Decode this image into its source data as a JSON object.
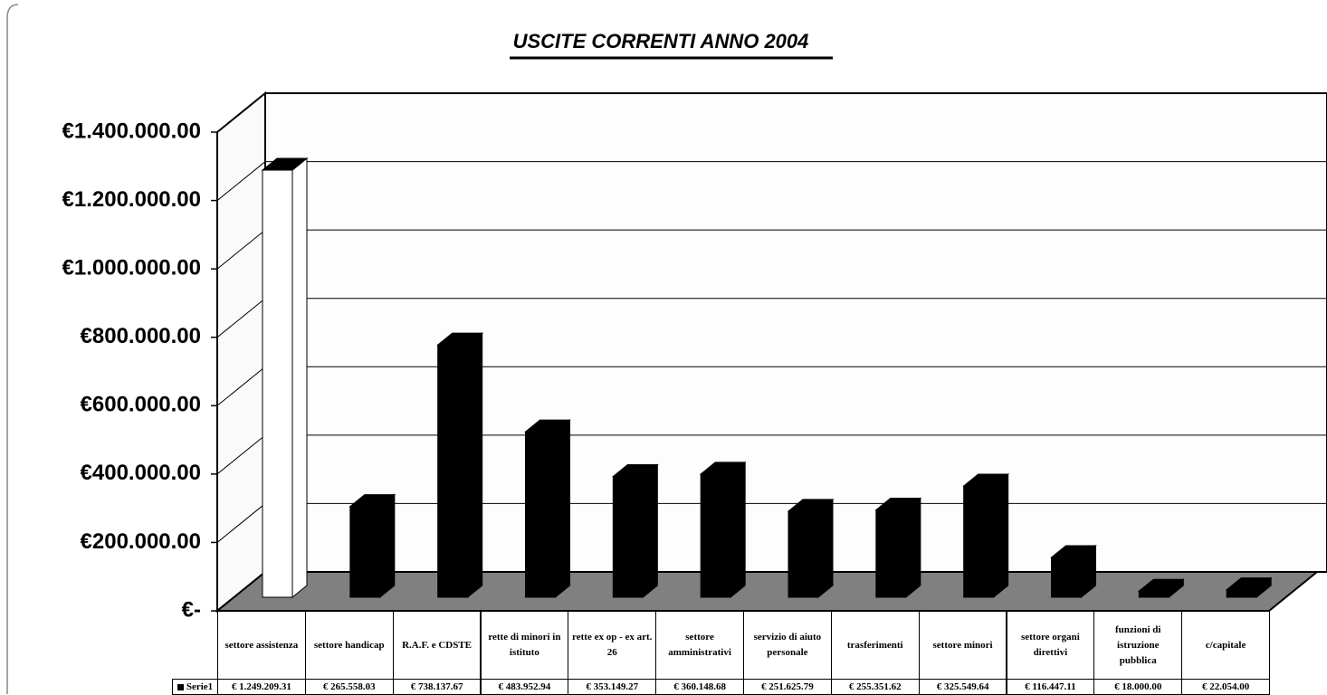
{
  "chart_data": {
    "type": "bar3d",
    "title": "USCITE CORRENTI ANNO 2004",
    "categories": [
      "settore assistenza",
      "settore handicap",
      "R.A.F. e CDSTE",
      "rette di minori in istituto",
      "rette ex op - ex art. 26",
      "settore amministrativi",
      "servizio di aiuto personale",
      "trasferimenti",
      "settore minori",
      "settore organi direttivi",
      "funzioni di istruzione pubblica",
      "c/capitale"
    ],
    "series": [
      {
        "name": "Serie1",
        "color": "#000000",
        "values": [
          1249209.31,
          265558.03,
          738137.67,
          483952.94,
          353149.27,
          360148.68,
          251625.79,
          255351.62,
          325549.64,
          116447.11,
          18000.0,
          22054.0
        ],
        "value_labels": [
          "€ 1.249.209.31",
          "€ 265.558.03",
          "€ 738.137.67",
          "€ 483.952.94",
          "€ 353.149.27",
          "€ 360.148.68",
          "€ 251.625.79",
          "€ 255.351.62",
          "€ 325.549.64",
          "€ 116.447.11",
          "€ 18.000.00",
          "€ 22.054.00"
        ]
      }
    ],
    "bar_colors": [
      "#ffffff",
      "#000000",
      "#000000",
      "#000000",
      "#000000",
      "#000000",
      "#000000",
      "#000000",
      "#000000",
      "#000000",
      "#000000",
      "#000000"
    ],
    "ylim": [
      0,
      1400000
    ],
    "yticks": [
      {
        "value": 0,
        "label": "€-"
      },
      {
        "value": 200000,
        "label": "€200.000.00"
      },
      {
        "value": 400000,
        "label": "€400.000.00"
      },
      {
        "value": 600000,
        "label": "€600.000.00"
      },
      {
        "value": 800000,
        "label": "€800.000.00"
      },
      {
        "value": 1000000,
        "label": "€1.000.000.00"
      },
      {
        "value": 1200000,
        "label": "€1.200.000.00"
      },
      {
        "value": 1400000,
        "label": "€1.400.000.00"
      }
    ],
    "grid": true,
    "floor_color": "#808080"
  }
}
